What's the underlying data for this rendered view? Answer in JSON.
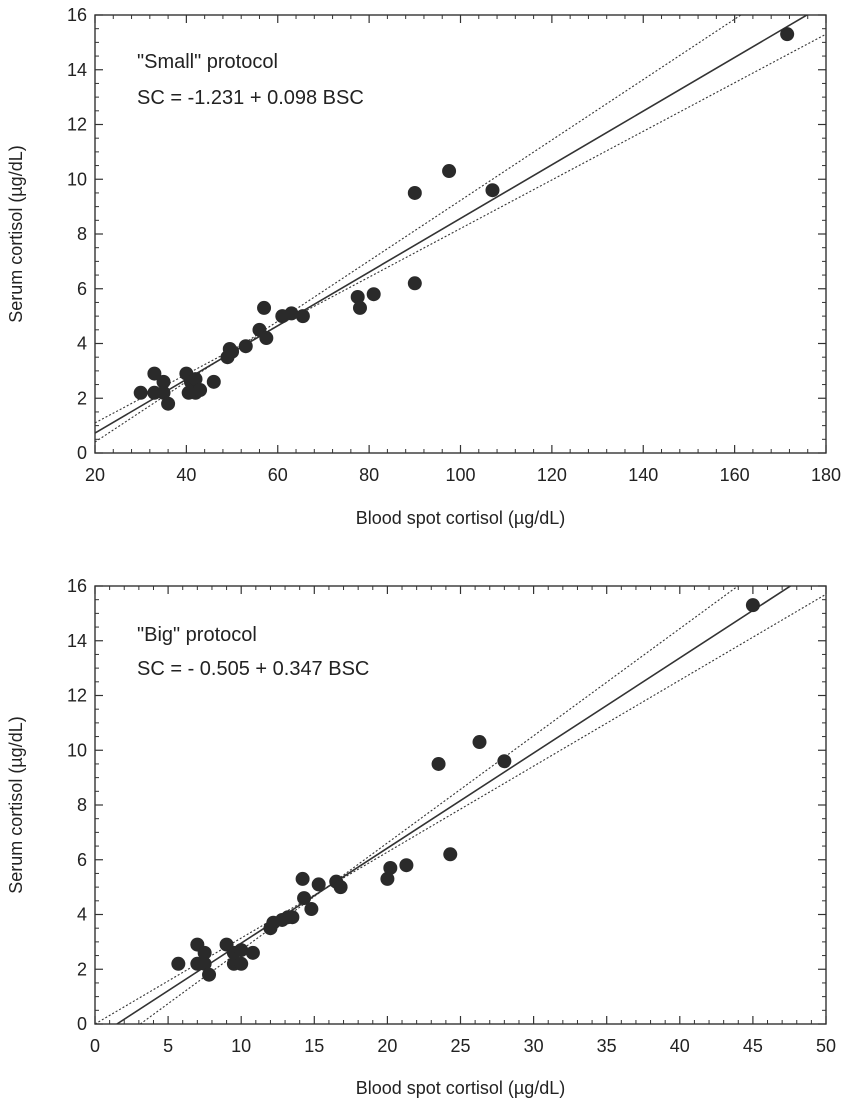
{
  "chart_data": [
    {
      "type": "scatter",
      "xlabel": "Blood spot cortisol (µg/dL)",
      "ylabel": "Serum cortisol (µg/dL)",
      "xlim": [
        20,
        180
      ],
      "ylim": [
        0,
        16
      ],
      "xticks": [
        "20",
        "40",
        "60",
        "80",
        "100",
        "120",
        "140",
        "160",
        "180"
      ],
      "yticks": [
        "0",
        "2",
        "4",
        "6",
        "8",
        "10",
        "12",
        "14",
        "16"
      ],
      "annotations": [
        "\"Small\" protocol",
        "SC = -1.231 + 0.098 BSC"
      ],
      "grid": false,
      "points": {
        "x": [
          30,
          33,
          33,
          35,
          35,
          36,
          40,
          40.5,
          41,
          42,
          42,
          43,
          46,
          49,
          49.5,
          50,
          53,
          56,
          57,
          57.5,
          61,
          63,
          65.5,
          77.5,
          78,
          81,
          90,
          90,
          97.5,
          107,
          171.5
        ],
        "y": [
          2.2,
          2.9,
          2.2,
          2.6,
          2.2,
          1.8,
          2.9,
          2.2,
          2.6,
          2.7,
          2.2,
          2.3,
          2.6,
          3.5,
          3.8,
          3.7,
          3.9,
          4.5,
          5.3,
          4.2,
          5.0,
          5.1,
          5.0,
          5.7,
          5.3,
          5.8,
          9.5,
          6.2,
          10.3,
          9.6,
          15.3
        ]
      },
      "lines": [
        {
          "style": "solid",
          "x": [
            20,
            180
          ],
          "y": [
            0.729,
            16.409
          ]
        },
        {
          "style": "dotted",
          "x": [
            20,
            165
          ],
          "y": [
            0.4,
            16.4
          ]
        },
        {
          "style": "dotted",
          "x": [
            20,
            180
          ],
          "y": [
            1.1,
            15.3
          ]
        }
      ]
    },
    {
      "type": "scatter",
      "xlabel": "Blood spot cortisol (µg/dL)",
      "ylabel": "Serum cortisol (µg/dL)",
      "xlim": [
        0,
        50
      ],
      "ylim": [
        0,
        16
      ],
      "xticks": [
        "0",
        "5",
        "10",
        "15",
        "20",
        "25",
        "30",
        "35",
        "40",
        "45",
        "50"
      ],
      "yticks": [
        "0",
        "2",
        "4",
        "6",
        "8",
        "10",
        "12",
        "14",
        "16"
      ],
      "annotations": [
        "\"Big\" protocol",
        "SC = - 0.505 + 0.347 BSC"
      ],
      "grid": false,
      "points": {
        "x": [
          5.7,
          7,
          7,
          7.5,
          7.5,
          7.8,
          9,
          9.5,
          9.5,
          10,
          10,
          10.8,
          12,
          12.2,
          12.8,
          13.5,
          13.2,
          14.3,
          14.2,
          14.8,
          15.3,
          16.5,
          16.8,
          20,
          20.2,
          21.3,
          23.5,
          24.3,
          26.3,
          28,
          45
        ],
        "y": [
          2.2,
          2.9,
          2.2,
          2.6,
          2.2,
          1.8,
          2.9,
          2.2,
          2.6,
          2.7,
          2.2,
          2.6,
          3.5,
          3.7,
          3.8,
          3.9,
          3.9,
          4.6,
          5.3,
          4.2,
          5.1,
          5.2,
          5.0,
          5.3,
          5.7,
          5.8,
          9.5,
          6.2,
          10.3,
          9.6,
          15.3
        ]
      },
      "lines": [
        {
          "style": "solid",
          "x": [
            1.5,
            50
          ],
          "y": [
            0,
            16.845
          ]
        },
        {
          "style": "dotted",
          "x": [
            3.1,
            45
          ],
          "y": [
            0,
            16.4
          ]
        },
        {
          "style": "dotted",
          "x": [
            0,
            50
          ],
          "y": [
            0,
            15.7
          ]
        }
      ]
    }
  ]
}
